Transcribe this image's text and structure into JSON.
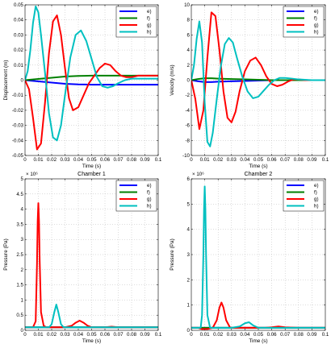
{
  "chart_data": [
    {
      "type": "line",
      "title": "",
      "xlabel": "Time (s)",
      "ylabel": "Displacement (m)",
      "xlim": [
        0,
        0.1
      ],
      "ylim": [
        -0.05,
        0.05
      ],
      "xticks": [
        0,
        0.01,
        0.02,
        0.03,
        0.04,
        0.05,
        0.06,
        0.07,
        0.08,
        0.09,
        0.1
      ],
      "yticks": [
        -0.05,
        -0.04,
        -0.03,
        -0.02,
        -0.01,
        0,
        0.01,
        0.02,
        0.03,
        0.04,
        0.05
      ],
      "grid": true,
      "legend": "top-right",
      "series": [
        {
          "name": "e)",
          "color": "#0000ff",
          "x": [
            0,
            0.005,
            0.01,
            0.015,
            0.02,
            0.025,
            0.03,
            0.035,
            0.04,
            0.045,
            0.05,
            0.06,
            0.07,
            0.08,
            0.09,
            0.1
          ],
          "values": [
            0,
            -0.0004,
            -0.0008,
            -0.0012,
            -0.0016,
            -0.002,
            -0.0024,
            -0.0026,
            -0.0028,
            -0.0029,
            -0.003,
            -0.003,
            -0.003,
            -0.003,
            -0.003,
            -0.003
          ]
        },
        {
          "name": "f)",
          "color": "#008000",
          "x": [
            0,
            0.005,
            0.01,
            0.015,
            0.02,
            0.025,
            0.03,
            0.035,
            0.04,
            0.045,
            0.05,
            0.06,
            0.07,
            0.08,
            0.09,
            0.1
          ],
          "values": [
            0,
            0.0004,
            0.0008,
            0.0012,
            0.0016,
            0.002,
            0.0024,
            0.0026,
            0.0028,
            0.0029,
            0.003,
            0.003,
            0.003,
            0.003,
            0.003,
            0.003
          ]
        },
        {
          "name": "g)",
          "color": "#ff0000",
          "x": [
            0,
            0.003,
            0.006,
            0.009,
            0.012,
            0.015,
            0.018,
            0.021,
            0.024,
            0.027,
            0.03,
            0.033,
            0.036,
            0.04,
            0.044,
            0.048,
            0.052,
            0.056,
            0.06,
            0.064,
            0.068,
            0.072,
            0.076,
            0.08,
            0.085,
            0.09,
            0.095,
            0.1
          ],
          "values": [
            0,
            -0.006,
            -0.025,
            -0.046,
            -0.042,
            -0.015,
            0.018,
            0.039,
            0.043,
            0.03,
            0.008,
            -0.012,
            -0.02,
            -0.018,
            -0.01,
            -0.002,
            0.003,
            0.008,
            0.011,
            0.01,
            0.006,
            0.003,
            0.002,
            0.002,
            0.003,
            0.003,
            0.003,
            0.003
          ]
        },
        {
          "name": "h)",
          "color": "#00c0c0",
          "x": [
            0,
            0.002,
            0.004,
            0.006,
            0.008,
            0.01,
            0.012,
            0.015,
            0.018,
            0.021,
            0.024,
            0.027,
            0.03,
            0.034,
            0.038,
            0.042,
            0.046,
            0.05,
            0.054,
            0.058,
            0.062,
            0.066,
            0.07,
            0.075,
            0.08,
            0.09,
            0.1
          ],
          "values": [
            0,
            0.006,
            0.02,
            0.038,
            0.049,
            0.045,
            0.03,
            0.005,
            -0.022,
            -0.038,
            -0.04,
            -0.03,
            -0.01,
            0.015,
            0.03,
            0.033,
            0.026,
            0.014,
            0.002,
            -0.004,
            -0.005,
            -0.004,
            -0.002,
            0,
            0.001,
            0.001,
            0.001
          ]
        }
      ]
    },
    {
      "type": "line",
      "title": "",
      "xlabel": "Time (s)",
      "ylabel": "Velocity (m/s)",
      "xlim": [
        0,
        0.1
      ],
      "ylim": [
        -10,
        10
      ],
      "xticks": [
        0,
        0.01,
        0.02,
        0.03,
        0.04,
        0.05,
        0.06,
        0.07,
        0.08,
        0.09,
        0.1
      ],
      "yticks": [
        -10,
        -8,
        -6,
        -4,
        -2,
        0,
        2,
        4,
        6,
        8,
        10
      ],
      "grid": true,
      "legend": "top-right",
      "series": [
        {
          "name": "e)",
          "color": "#0000ff",
          "x": [
            0,
            0.005,
            0.01,
            0.015,
            0.02,
            0.03,
            0.04,
            0.05,
            0.06,
            0.1
          ],
          "values": [
            0,
            -0.15,
            -0.25,
            -0.25,
            -0.2,
            -0.15,
            -0.1,
            -0.05,
            0,
            0
          ]
        },
        {
          "name": "f)",
          "color": "#008000",
          "x": [
            0,
            0.005,
            0.01,
            0.015,
            0.02,
            0.03,
            0.04,
            0.05,
            0.06,
            0.1
          ],
          "values": [
            0,
            0.15,
            0.25,
            0.25,
            0.2,
            0.15,
            0.1,
            0.05,
            0,
            0
          ]
        },
        {
          "name": "g)",
          "color": "#ff0000",
          "x": [
            0,
            0.003,
            0.006,
            0.009,
            0.012,
            0.015,
            0.018,
            0.021,
            0.024,
            0.027,
            0.03,
            0.033,
            0.036,
            0.04,
            0.044,
            0.048,
            0.052,
            0.056,
            0.06,
            0.064,
            0.068,
            0.072,
            0.076,
            0.08,
            0.085,
            0.09,
            0.1
          ],
          "values": [
            0,
            -2.5,
            -6.5,
            -4.0,
            3.0,
            9.0,
            8.5,
            4.0,
            -1.5,
            -5.0,
            -5.6,
            -4.2,
            -1.5,
            1.2,
            2.6,
            3.0,
            2.0,
            0.5,
            -0.5,
            -0.8,
            -0.6,
            -0.2,
            0.1,
            0.1,
            0,
            0,
            0
          ]
        },
        {
          "name": "h)",
          "color": "#00c0c0",
          "x": [
            0,
            0.002,
            0.004,
            0.006,
            0.008,
            0.01,
            0.012,
            0.014,
            0.016,
            0.019,
            0.022,
            0.025,
            0.028,
            0.031,
            0.034,
            0.038,
            0.042,
            0.046,
            0.05,
            0.054,
            0.058,
            0.062,
            0.066,
            0.07,
            0.075,
            0.08,
            0.09,
            0.1
          ],
          "values": [
            0,
            2.0,
            5.5,
            7.8,
            5.0,
            -3.0,
            -8.2,
            -8.8,
            -7.0,
            -2.5,
            1.8,
            4.8,
            5.6,
            5.0,
            3.0,
            0.5,
            -1.5,
            -2.4,
            -2.2,
            -1.4,
            -0.6,
            0,
            0.3,
            0.3,
            0.2,
            0.1,
            0,
            0
          ]
        }
      ]
    },
    {
      "type": "line",
      "title": "Chamber 1",
      "xlabel": "Time (s)",
      "ylabel": "Pressure (Pa)",
      "multiplier": "× 10⁶",
      "xlim": [
        0,
        0.1
      ],
      "ylim": [
        0,
        5
      ],
      "xticks": [
        0,
        0.01,
        0.02,
        0.03,
        0.04,
        0.05,
        0.06,
        0.07,
        0.08,
        0.09,
        0.1
      ],
      "yticks": [
        0,
        0.5,
        1,
        1.5,
        2,
        2.5,
        3,
        3.5,
        4,
        4.5,
        5
      ],
      "grid": true,
      "legend": "top-right",
      "series": [
        {
          "name": "e)",
          "color": "#0000ff",
          "x": [
            0,
            0.1
          ],
          "values": [
            0.1,
            0.1
          ]
        },
        {
          "name": "f)",
          "color": "#008000",
          "x": [
            0,
            0.1
          ],
          "values": [
            0.1,
            0.1
          ]
        },
        {
          "name": "g)",
          "color": "#ff0000",
          "x": [
            0,
            0.006,
            0.008,
            0.009,
            0.0095,
            0.01,
            0.0105,
            0.011,
            0.012,
            0.014,
            0.016,
            0.02,
            0.025,
            0.03,
            0.035,
            0.038,
            0.041,
            0.044,
            0.047,
            0.05,
            0.055,
            0.06,
            0.065,
            0.07,
            0.08,
            0.1
          ],
          "values": [
            0.1,
            0.1,
            0.3,
            2.2,
            3.6,
            4.2,
            3.6,
            2.3,
            0.6,
            0.15,
            0.1,
            0.1,
            0.1,
            0.1,
            0.15,
            0.25,
            0.32,
            0.25,
            0.15,
            0.1,
            0.1,
            0.1,
            0.12,
            0.1,
            0.1,
            0.1
          ]
        },
        {
          "name": "h)",
          "color": "#00c0c0",
          "x": [
            0,
            0.018,
            0.02,
            0.022,
            0.0235,
            0.025,
            0.027,
            0.029,
            0.032,
            0.04,
            0.06,
            0.08,
            0.1
          ],
          "values": [
            0.1,
            0.1,
            0.2,
            0.6,
            0.85,
            0.6,
            0.2,
            0.1,
            0.1,
            0.1,
            0.1,
            0.1,
            0.1
          ]
        }
      ]
    },
    {
      "type": "line",
      "title": "Chamber 2",
      "xlabel": "Time (s)",
      "ylabel": "Pressure (Pa)",
      "multiplier": "× 10⁶",
      "xlim": [
        0,
        0.1
      ],
      "ylim": [
        0,
        6
      ],
      "xticks": [
        0,
        0.01,
        0.02,
        0.03,
        0.04,
        0.05,
        0.06,
        0.07,
        0.08,
        0.09,
        0.1
      ],
      "yticks": [
        0,
        1,
        2,
        3,
        4,
        5,
        6
      ],
      "grid": true,
      "legend": "top-right",
      "series": [
        {
          "name": "e)",
          "color": "#0000ff",
          "x": [
            0,
            0.1
          ],
          "values": [
            0.1,
            0.1
          ]
        },
        {
          "name": "f)",
          "color": "#008000",
          "x": [
            0,
            0.1
          ],
          "values": [
            0.1,
            0.1
          ]
        },
        {
          "name": "g)",
          "color": "#ff0000",
          "x": [
            0,
            0.005,
            0.008,
            0.012,
            0.016,
            0.019,
            0.021,
            0.0225,
            0.024,
            0.026,
            0.029,
            0.035,
            0.045,
            0.055,
            0.06,
            0.065,
            0.07,
            0.08,
            0.1
          ],
          "values": [
            0.1,
            0.1,
            0.05,
            0.05,
            0.1,
            0.4,
            0.9,
            1.1,
            0.9,
            0.4,
            0.1,
            0.1,
            0.1,
            0.1,
            0.12,
            0.15,
            0.12,
            0.1,
            0.1
          ]
        },
        {
          "name": "h)",
          "color": "#00c0c0",
          "x": [
            0,
            0.007,
            0.008,
            0.009,
            0.0095,
            0.01,
            0.0105,
            0.011,
            0.012,
            0.014,
            0.02,
            0.03,
            0.036,
            0.04,
            0.043,
            0.046,
            0.05,
            0.06,
            0.1
          ],
          "values": [
            0.1,
            0.1,
            0.6,
            3.0,
            4.8,
            5.7,
            4.8,
            3.0,
            0.6,
            0.1,
            0.1,
            0.1,
            0.15,
            0.28,
            0.32,
            0.2,
            0.1,
            0.1,
            0.1
          ]
        }
      ]
    }
  ]
}
